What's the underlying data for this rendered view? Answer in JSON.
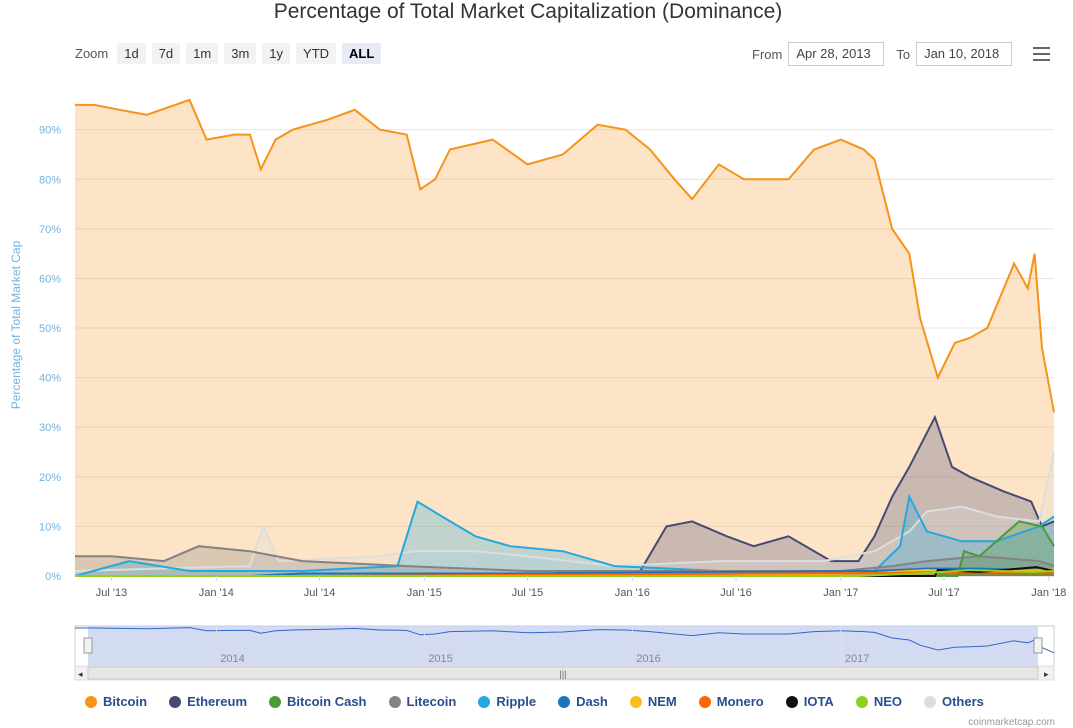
{
  "title": "Percentage of Total Market Capitalization (Dominance)",
  "zoom": {
    "label": "Zoom",
    "buttons": [
      "1d",
      "7d",
      "1m",
      "3m",
      "1y",
      "YTD",
      "ALL"
    ],
    "active": "ALL"
  },
  "range": {
    "from_label": "From",
    "from_value": "Apr 28, 2013",
    "to_label": "To",
    "to_value": "Jan 10, 2018"
  },
  "credit": "coinmarketcap.com",
  "colors": {
    "Bitcoin": "#f7931a",
    "Ethereum": "#454a75",
    "Bitcoin Cash": "#4a9a3a",
    "Litecoin": "#838383",
    "Ripple": "#23a8e0",
    "Dash": "#1c75bc",
    "NEM": "#fbbf1a",
    "Monero": "#ff6600",
    "IOTA": "#111111",
    "NEO": "#8fd21c",
    "Others": "#dddddd"
  },
  "chart_data": {
    "type": "area",
    "title": "Percentage of Total Market Capitalization (Dominance)",
    "ylabel": "Percentage of Total Market Cap",
    "ylim": [
      0,
      98
    ],
    "y_ticks": [
      "0%",
      "10%",
      "20%",
      "30%",
      "40%",
      "50%",
      "60%",
      "70%",
      "80%",
      "90%"
    ],
    "y_tick_values": [
      0,
      10,
      20,
      30,
      40,
      50,
      60,
      70,
      80,
      90
    ],
    "xlim": [
      "2013-04-28",
      "2018-01-10"
    ],
    "x_ticks": [
      {
        "label": "Jul '13",
        "date": "2013-07-01"
      },
      {
        "label": "Jan '14",
        "date": "2014-01-01"
      },
      {
        "label": "Jul '14",
        "date": "2014-07-01"
      },
      {
        "label": "Jan '15",
        "date": "2015-01-01"
      },
      {
        "label": "Jul '15",
        "date": "2015-07-01"
      },
      {
        "label": "Jan '16",
        "date": "2016-01-01"
      },
      {
        "label": "Jul '16",
        "date": "2016-07-01"
      },
      {
        "label": "Jan '17",
        "date": "2017-01-01"
      },
      {
        "label": "Jul '17",
        "date": "2017-07-01"
      },
      {
        "label": "Jan '18",
        "date": "2018-01-01"
      }
    ],
    "navigator_labels": [
      {
        "label": "2014",
        "date": "2014-01-01"
      },
      {
        "label": "2015",
        "date": "2015-01-01"
      },
      {
        "label": "2016",
        "date": "2016-01-01"
      },
      {
        "label": "2017",
        "date": "2017-01-01"
      }
    ],
    "grid": true,
    "legend_position": "bottom",
    "series": [
      {
        "name": "Bitcoin",
        "points": [
          [
            "2013-04-28",
            95
          ],
          [
            "2013-06-01",
            95
          ],
          [
            "2013-07-15",
            94
          ],
          [
            "2013-09-01",
            93
          ],
          [
            "2013-11-15",
            96
          ],
          [
            "2013-12-15",
            88
          ],
          [
            "2014-02-01",
            89
          ],
          [
            "2014-03-01",
            89
          ],
          [
            "2014-03-20",
            82
          ],
          [
            "2014-04-15",
            88
          ],
          [
            "2014-05-15",
            90
          ],
          [
            "2014-07-15",
            92
          ],
          [
            "2014-09-01",
            94
          ],
          [
            "2014-10-15",
            90
          ],
          [
            "2014-12-01",
            89
          ],
          [
            "2014-12-25",
            78
          ],
          [
            "2015-01-20",
            80
          ],
          [
            "2015-02-15",
            86
          ],
          [
            "2015-05-01",
            88
          ],
          [
            "2015-07-01",
            83
          ],
          [
            "2015-09-01",
            85
          ],
          [
            "2015-11-01",
            91
          ],
          [
            "2015-12-20",
            90
          ],
          [
            "2016-02-01",
            86
          ],
          [
            "2016-03-15",
            80
          ],
          [
            "2016-04-15",
            76
          ],
          [
            "2016-06-01",
            83
          ],
          [
            "2016-07-15",
            80
          ],
          [
            "2016-10-01",
            80
          ],
          [
            "2016-11-15",
            86
          ],
          [
            "2017-01-01",
            88
          ],
          [
            "2017-02-10",
            86
          ],
          [
            "2017-03-01",
            84
          ],
          [
            "2017-04-01",
            70
          ],
          [
            "2017-05-01",
            65
          ],
          [
            "2017-05-20",
            52
          ],
          [
            "2017-06-20",
            40
          ],
          [
            "2017-07-20",
            47
          ],
          [
            "2017-08-15",
            48
          ],
          [
            "2017-09-15",
            50
          ],
          [
            "2017-11-01",
            63
          ],
          [
            "2017-11-25",
            58
          ],
          [
            "2017-12-07",
            65
          ],
          [
            "2017-12-20",
            46
          ],
          [
            "2018-01-10",
            33
          ]
        ]
      },
      {
        "name": "Ethereum",
        "points": [
          [
            "2013-04-28",
            0
          ],
          [
            "2015-08-01",
            0
          ],
          [
            "2015-09-01",
            0.8
          ],
          [
            "2016-01-15",
            1
          ],
          [
            "2016-03-01",
            10
          ],
          [
            "2016-04-15",
            11
          ],
          [
            "2016-06-15",
            8
          ],
          [
            "2016-08-01",
            6
          ],
          [
            "2016-10-01",
            8
          ],
          [
            "2016-12-15",
            3
          ],
          [
            "2017-02-01",
            3
          ],
          [
            "2017-03-01",
            8
          ],
          [
            "2017-04-01",
            16
          ],
          [
            "2017-05-01",
            22
          ],
          [
            "2017-06-15",
            32
          ],
          [
            "2017-07-15",
            22
          ],
          [
            "2017-08-15",
            20
          ],
          [
            "2017-10-15",
            17
          ],
          [
            "2017-12-01",
            15
          ],
          [
            "2017-12-20",
            10
          ],
          [
            "2018-01-10",
            11
          ]
        ]
      },
      {
        "name": "Others",
        "points": [
          [
            "2013-04-28",
            1
          ],
          [
            "2014-03-01",
            2
          ],
          [
            "2014-03-25",
            10
          ],
          [
            "2014-04-20",
            3
          ],
          [
            "2014-10-15",
            4
          ],
          [
            "2014-12-15",
            5
          ],
          [
            "2015-04-01",
            5
          ],
          [
            "2015-07-01",
            4
          ],
          [
            "2015-12-01",
            2
          ],
          [
            "2016-06-01",
            3
          ],
          [
            "2016-12-01",
            3
          ],
          [
            "2017-03-01",
            5
          ],
          [
            "2017-05-01",
            9
          ],
          [
            "2017-06-01",
            13
          ],
          [
            "2017-08-01",
            14
          ],
          [
            "2017-10-01",
            12
          ],
          [
            "2017-12-15",
            11
          ],
          [
            "2018-01-10",
            25
          ]
        ]
      },
      {
        "name": "Ripple",
        "points": [
          [
            "2013-04-28",
            0
          ],
          [
            "2013-08-01",
            3
          ],
          [
            "2013-11-15",
            1
          ],
          [
            "2014-01-15",
            1
          ],
          [
            "2014-06-01",
            1
          ],
          [
            "2014-11-15",
            2
          ],
          [
            "2014-12-20",
            15
          ],
          [
            "2015-02-01",
            12
          ],
          [
            "2015-04-01",
            8
          ],
          [
            "2015-06-01",
            6
          ],
          [
            "2015-09-01",
            5
          ],
          [
            "2015-12-01",
            2
          ],
          [
            "2016-06-01",
            1
          ],
          [
            "2016-12-01",
            1
          ],
          [
            "2017-03-01",
            1
          ],
          [
            "2017-04-15",
            6
          ],
          [
            "2017-05-01",
            16
          ],
          [
            "2017-06-01",
            9
          ],
          [
            "2017-08-01",
            7
          ],
          [
            "2017-10-01",
            7
          ],
          [
            "2017-12-15",
            10
          ],
          [
            "2018-01-10",
            12
          ]
        ]
      },
      {
        "name": "Litecoin",
        "points": [
          [
            "2013-04-28",
            4
          ],
          [
            "2013-07-01",
            4
          ],
          [
            "2013-10-01",
            3
          ],
          [
            "2013-12-01",
            6
          ],
          [
            "2014-03-01",
            5
          ],
          [
            "2014-06-01",
            3
          ],
          [
            "2014-12-01",
            2
          ],
          [
            "2015-07-01",
            1
          ],
          [
            "2016-06-01",
            1
          ],
          [
            "2017-01-01",
            1
          ],
          [
            "2017-04-01",
            2
          ],
          [
            "2017-06-01",
            3
          ],
          [
            "2017-09-01",
            4
          ],
          [
            "2017-12-15",
            3
          ],
          [
            "2018-01-10",
            2
          ]
        ]
      },
      {
        "name": "Bitcoin Cash",
        "points": [
          [
            "2013-04-28",
            0
          ],
          [
            "2017-07-25",
            0
          ],
          [
            "2017-08-05",
            5
          ],
          [
            "2017-09-01",
            4
          ],
          [
            "2017-11-10",
            11
          ],
          [
            "2017-12-20",
            10
          ],
          [
            "2018-01-10",
            6
          ]
        ]
      },
      {
        "name": "Dash",
        "points": [
          [
            "2013-04-28",
            0
          ],
          [
            "2014-03-01",
            0
          ],
          [
            "2014-06-01",
            0.5
          ],
          [
            "2015-06-01",
            0.5
          ],
          [
            "2016-06-01",
            0.8
          ],
          [
            "2017-03-01",
            1
          ],
          [
            "2017-06-01",
            1.5
          ],
          [
            "2017-09-01",
            1.5
          ],
          [
            "2018-01-10",
            1
          ]
        ]
      },
      {
        "name": "NEM",
        "points": [
          [
            "2013-04-28",
            0
          ],
          [
            "2016-06-01",
            0
          ],
          [
            "2017-03-01",
            0.6
          ],
          [
            "2017-06-01",
            1.2
          ],
          [
            "2017-09-01",
            0.8
          ],
          [
            "2018-01-10",
            1.3
          ]
        ]
      },
      {
        "name": "Monero",
        "points": [
          [
            "2013-04-28",
            0
          ],
          [
            "2014-07-01",
            0
          ],
          [
            "2016-09-01",
            0.5
          ],
          [
            "2017-03-01",
            0.6
          ],
          [
            "2017-09-01",
            0.8
          ],
          [
            "2018-01-10",
            0.8
          ]
        ]
      },
      {
        "name": "IOTA",
        "points": [
          [
            "2013-04-28",
            0
          ],
          [
            "2017-06-15",
            0
          ],
          [
            "2017-06-20",
            1.2
          ],
          [
            "2017-09-01",
            0.8
          ],
          [
            "2017-12-10",
            1.8
          ],
          [
            "2018-01-10",
            1
          ]
        ]
      },
      {
        "name": "NEO",
        "points": [
          [
            "2013-04-28",
            0
          ],
          [
            "2017-02-01",
            0
          ],
          [
            "2017-06-01",
            0.6
          ],
          [
            "2017-08-15",
            1.2
          ],
          [
            "2017-12-01",
            0.8
          ],
          [
            "2018-01-10",
            1
          ]
        ]
      }
    ]
  }
}
